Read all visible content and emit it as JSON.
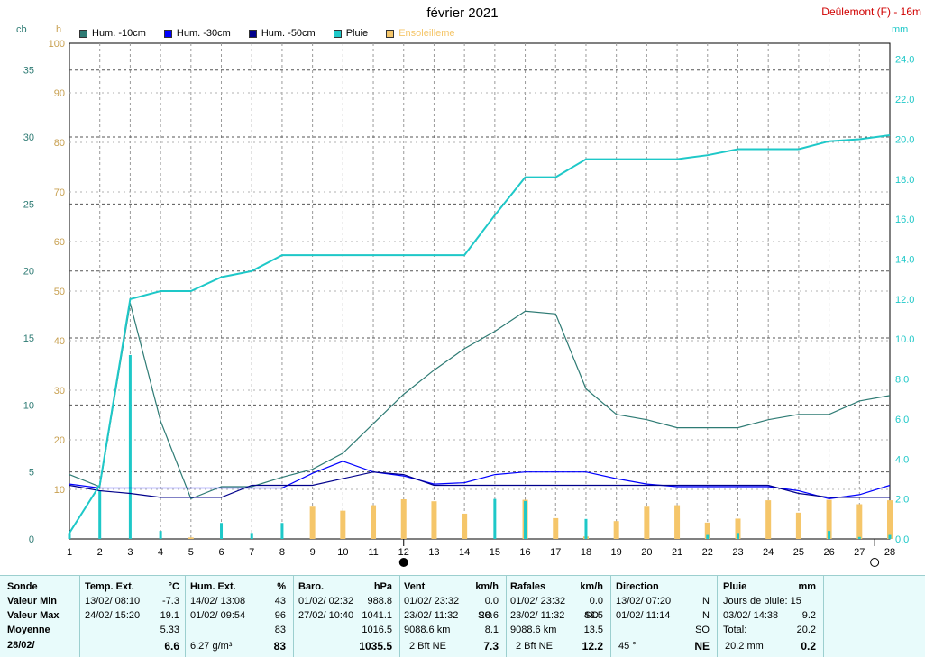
{
  "header": {
    "title": "février 2021",
    "station": "Deûlemont (F) - 16m",
    "unit_cb": "cb",
    "unit_h": "h",
    "unit_mm": "mm"
  },
  "legend": [
    {
      "label": "Hum. -10cm",
      "color": "#2e7b74"
    },
    {
      "label": "Hum. -30cm",
      "color": "#0000ff"
    },
    {
      "label": "Hum. -50cm",
      "color": "#00008b"
    },
    {
      "label": "Pluie",
      "color": "#1ec8c8"
    },
    {
      "label": "Ensoleilleme",
      "color": "#f5c66a"
    }
  ],
  "chart_data": {
    "type": "line",
    "x": [
      1,
      2,
      3,
      4,
      5,
      6,
      7,
      8,
      9,
      10,
      11,
      12,
      13,
      14,
      15,
      16,
      17,
      18,
      19,
      20,
      21,
      22,
      23,
      24,
      25,
      26,
      27,
      28
    ],
    "xticks": [
      "1",
      "2",
      "3",
      "4",
      "5",
      "6",
      "7",
      "8",
      "9",
      "10",
      "11",
      "12",
      "13",
      "14",
      "15",
      "16",
      "17",
      "18",
      "19",
      "20",
      "21",
      "22",
      "23",
      "24",
      "25",
      "26",
      "27",
      "28"
    ],
    "axes": {
      "cb": {
        "label": "cb",
        "ylim": [
          0,
          37
        ],
        "ticks": [
          "0",
          "5",
          "10",
          "15",
          "20",
          "25",
          "30",
          "35"
        ]
      },
      "h": {
        "label": "h",
        "ylim": [
          0,
          100
        ],
        "ticks": [
          "10",
          "20",
          "30",
          "40",
          "50",
          "60",
          "70",
          "80",
          "90",
          "100"
        ]
      },
      "mm": {
        "label": "mm",
        "ylim": [
          0,
          24.8
        ],
        "ticks": [
          "0.0",
          "2.0",
          "4.0",
          "6.0",
          "8.0",
          "10.0",
          "12.0",
          "14.0",
          "16.0",
          "18.0",
          "20.0",
          "22.0",
          "24.0"
        ]
      }
    },
    "grid": true,
    "series": [
      {
        "name": "Hum. -10cm",
        "axis": "cb",
        "color": "#2e7b74",
        "values": [
          4.8,
          3.9,
          17.6,
          8.8,
          3.0,
          3.9,
          3.9,
          4.6,
          5.2,
          6.4,
          8.6,
          10.8,
          12.6,
          14.2,
          15.5,
          17.0,
          16.8,
          11.2,
          9.3,
          8.9,
          8.3,
          8.3,
          8.3,
          8.9,
          9.3,
          9.3,
          10.3,
          10.7
        ]
      },
      {
        "name": "Hum. -30cm",
        "axis": "cb",
        "color": "#0000ff",
        "values": [
          4.1,
          3.8,
          3.8,
          3.8,
          3.8,
          3.8,
          3.8,
          3.8,
          4.9,
          5.8,
          5.0,
          4.7,
          4.1,
          4.2,
          4.8,
          5.0,
          5.0,
          5.0,
          4.5,
          4.1,
          3.9,
          3.9,
          3.9,
          3.9,
          3.6,
          3.0,
          3.3,
          4.0
        ]
      },
      {
        "name": "Hum. -50cm",
        "axis": "cb",
        "color": "#00008b",
        "values": [
          4.0,
          3.6,
          3.4,
          3.1,
          3.1,
          3.1,
          4.0,
          4.0,
          4.0,
          4.5,
          5.0,
          4.8,
          4.0,
          4.0,
          4.0,
          4.0,
          4.0,
          4.0,
          4.0,
          4.0,
          4.0,
          4.0,
          4.0,
          4.0,
          3.4,
          3.1,
          3.1,
          3.1
        ]
      },
      {
        "name": "Pluie",
        "axis": "mm",
        "color": "#1ec8c8",
        "values": [
          0.3,
          2.7,
          12.0,
          12.4,
          12.4,
          13.1,
          13.4,
          14.2,
          14.2,
          14.2,
          14.2,
          14.2,
          14.2,
          14.2,
          16.2,
          18.1,
          18.1,
          19.0,
          19.0,
          19.0,
          19.0,
          19.2,
          19.5,
          19.5,
          19.5,
          19.9,
          20.0,
          20.2
        ]
      }
    ],
    "bars": [
      {
        "name": "Pluie (jour)",
        "axis": "mm",
        "color": "#1ec8c8",
        "values": [
          0.3,
          2.4,
          9.2,
          0.4,
          0.0,
          0.8,
          0.3,
          0.8,
          0.0,
          0.0,
          0.0,
          0.0,
          0.0,
          0.0,
          2.0,
          1.9,
          0.0,
          1.0,
          0.0,
          0.0,
          0.0,
          0.2,
          0.3,
          0.0,
          0.0,
          0.4,
          0.1,
          0.2
        ]
      },
      {
        "name": "Ensoleilleme",
        "axis": "h",
        "color": "#f5c66a",
        "values": [
          0,
          0,
          0,
          0,
          0.3,
          0,
          0,
          0,
          6.5,
          5.7,
          6.8,
          8.0,
          7.6,
          5.1,
          0,
          7.9,
          4.2,
          0.5,
          3.6,
          6.5,
          6.8,
          3.3,
          4.1,
          7.8,
          5.3,
          7.9,
          7.0,
          7.8
        ]
      }
    ],
    "moon_symbols": [
      {
        "x": 12,
        "symbol": "full"
      },
      {
        "x": 27.5,
        "symbol": "new"
      }
    ]
  },
  "table": {
    "row_labels": [
      "Sonde",
      "Valeur Min",
      "Valeur Max",
      "Moyenne",
      "28/02/"
    ],
    "temp": {
      "header": "Temp. Ext.",
      "unit": "°C",
      "min_date": "13/02/  08:10",
      "min_val": "-7.3",
      "max_date": "24/02/  15:20",
      "max_val": "19.1",
      "avg": "5.33",
      "current": "6.6"
    },
    "hum": {
      "header": "Hum. Ext.",
      "unit": "%",
      "min_date": "14/02/  13:08",
      "min_val": "43",
      "max_date": "01/02/  09:54",
      "max_val": "96",
      "avg": "83",
      "current_extra": "6.27 g/m³",
      "current": "83"
    },
    "baro": {
      "header": "Baro.",
      "unit": "hPa",
      "min_date": "01/02/  02:32",
      "min_val": "988.8",
      "max_date": "27/02/  10:40",
      "max_val": "1041.1",
      "avg": "1016.5",
      "current": "1035.5"
    },
    "vent": {
      "header": "Vent",
      "unit": "km/h",
      "min_date": "01/02/  23:32",
      "min_val": "0.0",
      "max_date": "23/02/  11:32",
      "max_dir": "SO",
      "max_val": "28.6",
      "avg_extra": "9088.6 km",
      "avg": "8.1",
      "current_extra": "2 Bft NE",
      "current": "7.3"
    },
    "rafales": {
      "header": "Rafales",
      "unit": "km/h",
      "min_date": "01/02/  23:32",
      "min_val": "0.0",
      "max_date": "23/02/  11:32",
      "max_dir": "SO",
      "max_val": "43.5",
      "avg_extra": "9088.6 km",
      "avg": "13.5",
      "current_extra": "2 Bft NE",
      "current": "12.2"
    },
    "direction": {
      "header": "Direction",
      "min_date": "13/02/  07:20",
      "min_val": "N",
      "max_date": "01/02/  11:14",
      "max_val": "N",
      "avg": "SO",
      "current_extra": "45 °",
      "current": "NE"
    },
    "pluie": {
      "header": "Pluie",
      "unit": "mm",
      "days": "Jours de pluie: 15",
      "max_date": "03/02/  14:38",
      "max_val": "9.2",
      "total_label": "Total:",
      "total_val": "20.2",
      "current_extra": "20.2 mm",
      "current": "0.2"
    }
  }
}
